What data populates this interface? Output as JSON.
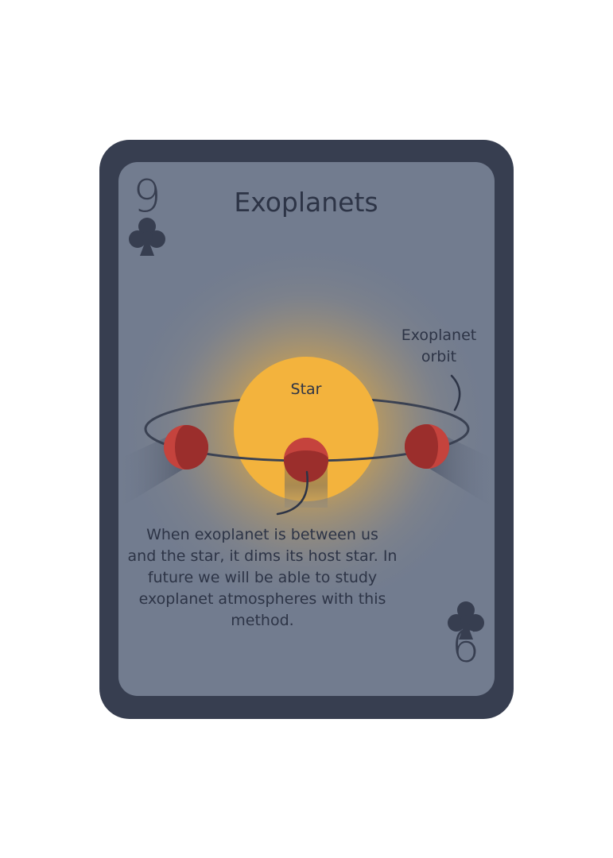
{
  "card": {
    "title": "Exoplanets",
    "rank": "9",
    "suit": "club-icon",
    "colors": {
      "frame": "#373e50",
      "face": "#727c8f",
      "ink": "#2d3446",
      "star": "#f3b33d",
      "planet": "#b93a35",
      "planet_shade": "#9b2e2c",
      "orbit": "#3a4152"
    }
  },
  "diagram": {
    "star_label": "Star",
    "orbit_label_line1": "Exoplanet",
    "orbit_label_line2": "orbit",
    "caption_lines": [
      "When exoplanet is between us",
      "and the star, it dims its host star. In",
      "future we will be able to study",
      "exoplanet atmospheres with this",
      "method."
    ]
  }
}
